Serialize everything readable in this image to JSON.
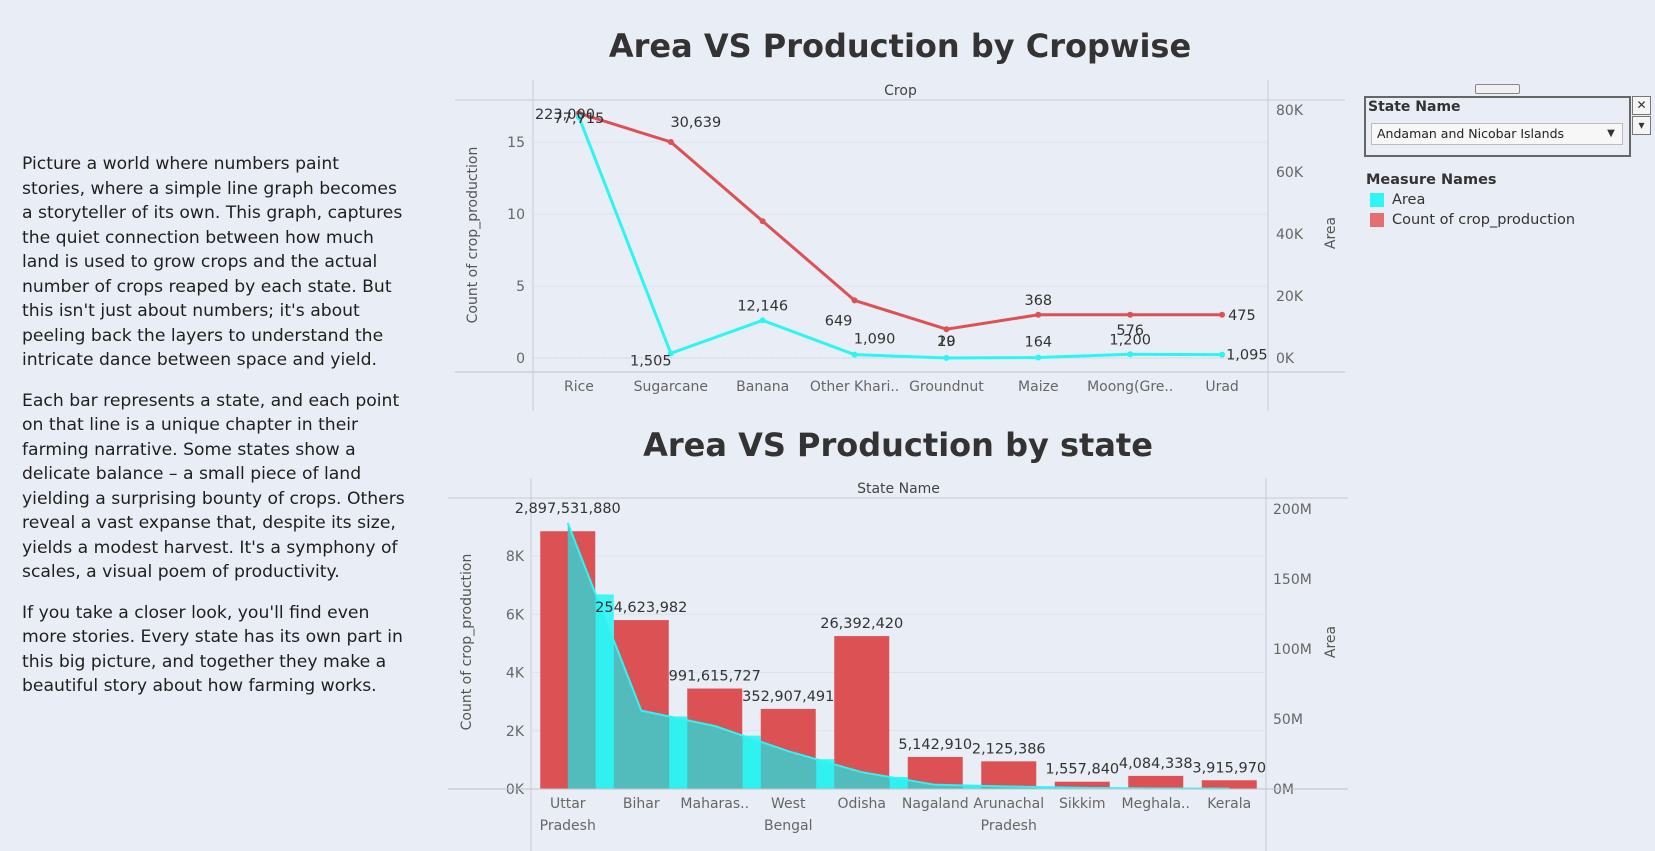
{
  "story": {
    "p1": "Picture a world where numbers paint stories, where a simple line graph becomes a storyteller of its own. This graph, captures the quiet connection between how much land is used to grow crops and the actual number of crops reaped by each state. But this isn't just about numbers; it's about peeling back the layers to understand the intricate dance between space and yield.",
    "p2": "Each bar represents a state, and each point on that line is a unique chapter in their farming narrative. Some states show a delicate balance – a small piece of land yielding a surprising bounty of crops. Others reveal a vast expanse that, despite its size, yields a modest harvest. It's a symphony of scales, a visual poem of productivity.",
    "p3": "If you take a closer look, you'll find even more stories. Every state has its own part in this big picture, and together they make a beautiful story about how farming works."
  },
  "filter": {
    "title": "State Name",
    "selected": "Andaman and Nicobar Islands",
    "close_icon": "✕",
    "menu_icon": "▾"
  },
  "legend": {
    "title": "Measure Names",
    "items": [
      {
        "label": "Area",
        "color": "#2ef5f5"
      },
      {
        "label": "Count of crop_production",
        "color": "#e46f71"
      }
    ]
  },
  "colors": {
    "area": "#2ef5f5",
    "count": "#dc5254",
    "area_fill": "#4dbfbf"
  },
  "chart_data": [
    {
      "type": "line",
      "title": "Area VS Production by Cropwise",
      "header": "Crop",
      "ylabel": "Count of crop_production",
      "y2label": "Area",
      "categories": [
        "Rice",
        "Sugarcane",
        "Banana",
        "Other Khari..",
        "Groundnut",
        "Maize",
        "Moong(Gre..",
        "Urad"
      ],
      "ylim": [
        0,
        18
      ],
      "y_ticks": [
        0,
        5,
        10,
        15
      ],
      "y2lim": [
        0,
        85000
      ],
      "y2_ticks": [
        "0K",
        "20K",
        "40K",
        "60K",
        "80K"
      ],
      "y2_tick_values": [
        0,
        20000,
        40000,
        60000,
        80000
      ],
      "series": [
        {
          "name": "Count of crop_production",
          "axis": "left",
          "values": [
            17,
            15,
            9.5,
            4,
            2,
            3,
            3,
            3
          ]
        },
        {
          "name": "Area",
          "axis": "right",
          "values": [
            77715,
            1505,
            12146,
            1090,
            20,
            164,
            1200,
            1095
          ]
        }
      ],
      "labels": [
        "223,000",
        "77,715",
        "30,639",
        "1,505",
        "12,146",
        "649",
        "1,090",
        "20",
        "19",
        "164",
        "368",
        "1,200",
        "576",
        "1,095",
        "475"
      ]
    },
    {
      "type": "bar",
      "title": "Area VS Production by state",
      "header": "State Name",
      "ylabel": "Count of crop_production",
      "y2label": "Area",
      "categories": [
        "Uttar Pradesh",
        "Bihar",
        "Maharas..",
        "West Bengal",
        "Odisha",
        "Nagaland",
        "Arunachal Pradesh",
        "Sikkim",
        "Meghala..",
        "Kerala"
      ],
      "ylim": [
        0,
        9500
      ],
      "y_ticks": [
        "0K",
        "2K",
        "4K",
        "6K",
        "8K"
      ],
      "y_tick_values": [
        0,
        2000,
        4000,
        6000,
        8000
      ],
      "y2lim": [
        0,
        210000000
      ],
      "y2_ticks": [
        "0M",
        "50M",
        "100M",
        "150M",
        "200M"
      ],
      "y2_tick_values": [
        0,
        50000000,
        100000000,
        150000000,
        200000000
      ],
      "series": [
        {
          "name": "Count of crop_production",
          "axis": "left",
          "values": [
            8850,
            5800,
            3450,
            2750,
            5250,
            1100,
            950,
            250,
            450,
            300
          ]
        },
        {
          "name": "Area",
          "axis": "right",
          "values": [
            190000000,
            56000000,
            45000000,
            27000000,
            12000000,
            3000000,
            1800000,
            800000,
            400000,
            300000
          ]
        }
      ],
      "labels": [
        "2,897,531,880",
        "254,623,982",
        "991,615,727",
        "352,907,491",
        "26,392,420",
        "5,142,910",
        "2,125,386",
        "1,557,840",
        "4,084,338",
        "3,915,970"
      ]
    }
  ]
}
